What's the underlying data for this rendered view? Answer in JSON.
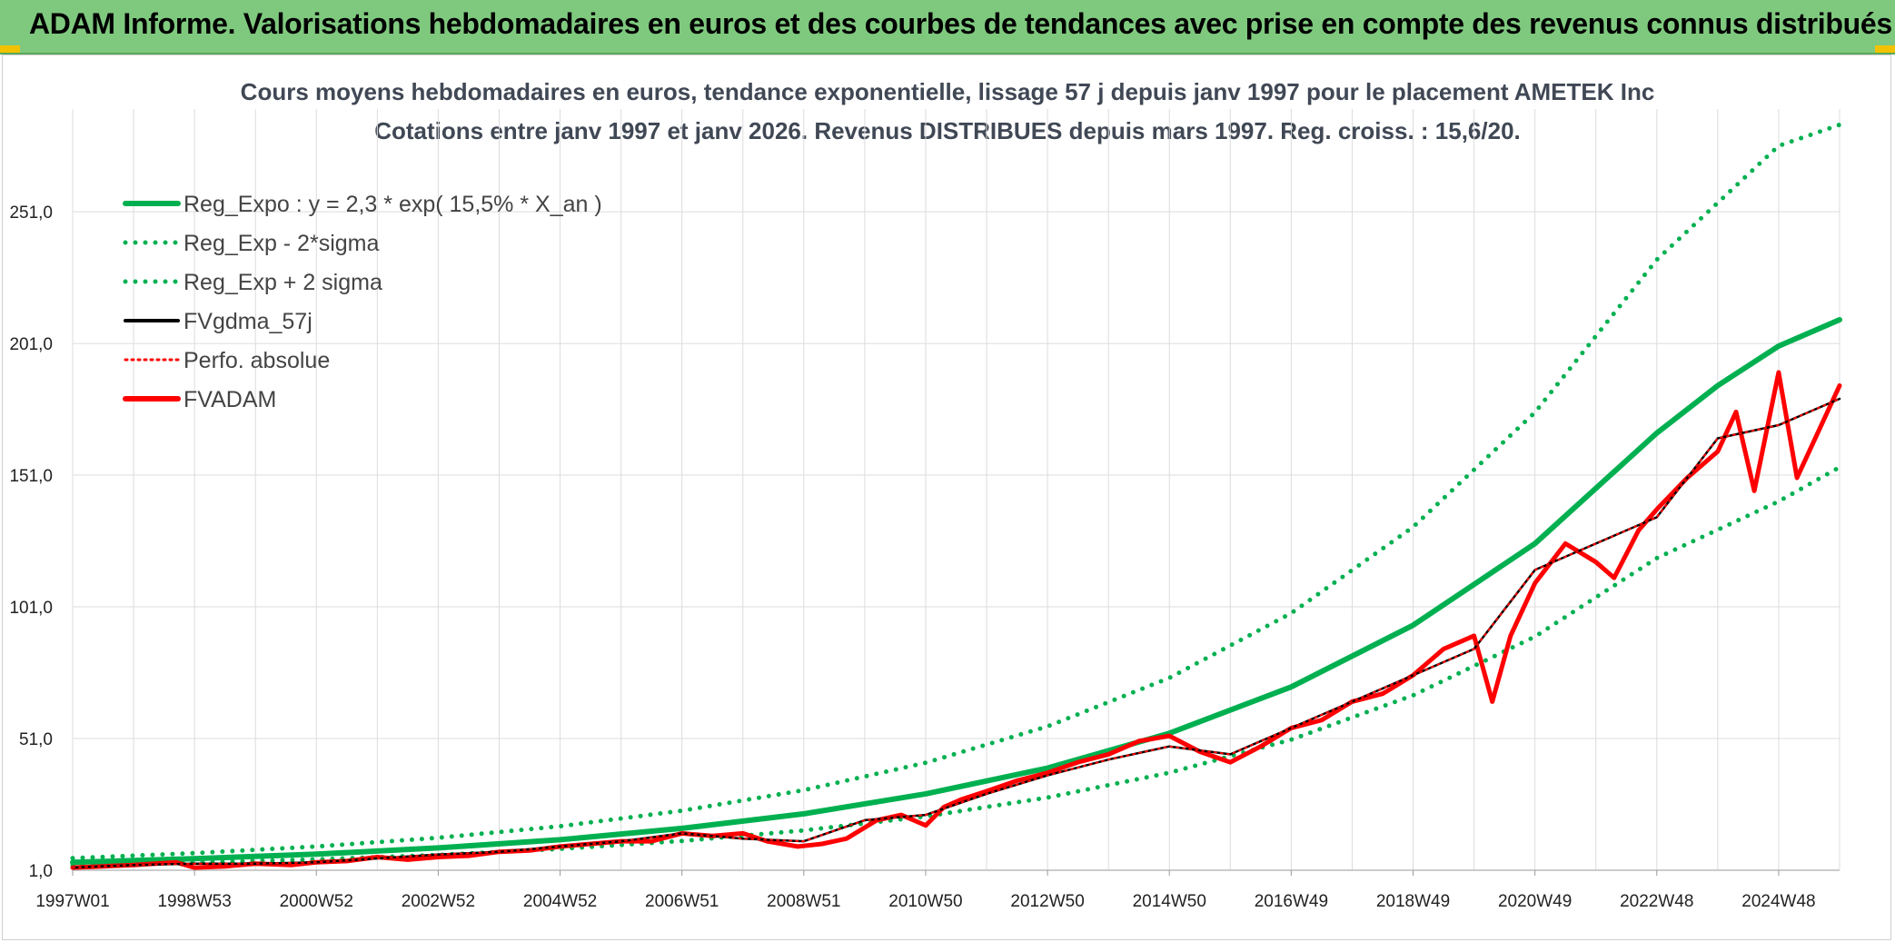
{
  "header": {
    "title": "ADAM Informe. Valorisations hebdomadaires en euros et des courbes de tendances avec prise en compte des revenus connus distribués"
  },
  "chart_data": {
    "type": "line",
    "title": "Cours moyens hebdomadaires en euros, tendance exponentielle, lissage 57 j depuis janv 1997 pour le placement AMETEK Inc",
    "subtitle": "Cotations entre janv 1997 et janv 2026. Revenus DISTRIBUES depuis mars 1997. Reg. croiss. : 15,6/20.",
    "xlabel": "",
    "ylabel": "",
    "x_ticks": [
      "1997W01",
      "1998W53",
      "2000W52",
      "2002W52",
      "2004W52",
      "2006W51",
      "2008W51",
      "2010W50",
      "2012W50",
      "2014W50",
      "2016W49",
      "2018W49",
      "2020W49",
      "2022W48",
      "2024W48"
    ],
    "x_range": [
      1997.0,
      2026.0
    ],
    "y_ticks": [
      "1,0",
      "51,0",
      "101,0",
      "151,0",
      "201,0",
      "251,0"
    ],
    "ylim": [
      1,
      290
    ],
    "grid": true,
    "legend_position": "top-left",
    "colors": {
      "green": "#00b050",
      "red": "#ff0000",
      "black": "#000000"
    },
    "series": [
      {
        "name": "Reg_Expo : y = 2,3 * exp( 15,5% *  X_an )",
        "style": "solid",
        "color": "#00b050",
        "x": [
          1997,
          1999,
          2001,
          2003,
          2005,
          2007,
          2009,
          2011,
          2013,
          2015,
          2017,
          2019,
          2021,
          2023,
          2024,
          2025,
          2026
        ],
        "y": [
          4,
          5.4,
          7.1,
          9.5,
          12.6,
          16.9,
          22.4,
          30,
          39.8,
          53,
          70.6,
          94,
          125,
          167,
          185,
          200,
          210
        ]
      },
      {
        "name": "Reg_Exp - 2*sigma",
        "style": "dotted",
        "color": "#00b050",
        "x": [
          1997,
          1999,
          2001,
          2003,
          2005,
          2007,
          2009,
          2011,
          2013,
          2015,
          2017,
          2019,
          2021,
          2023,
          2025,
          2026
        ],
        "y": [
          2.9,
          3.9,
          5.1,
          6.8,
          9.1,
          12.1,
          16.1,
          21.4,
          28.6,
          38,
          50.6,
          67.4,
          89.7,
          119.5,
          141,
          154
        ]
      },
      {
        "name": "Reg_Exp + 2 sigma",
        "style": "dotted",
        "color": "#00b050",
        "x": [
          1997,
          1999,
          2001,
          2003,
          2005,
          2007,
          2009,
          2011,
          2013,
          2015,
          2017,
          2019,
          2021,
          2023,
          2025,
          2026
        ],
        "y": [
          5.6,
          7.5,
          10,
          13.3,
          17.7,
          23.6,
          31.4,
          41.8,
          55.6,
          74,
          98.6,
          131.3,
          174.8,
          232.8,
          276,
          284
        ]
      },
      {
        "name": "FVgdma_57j",
        "style": "solid",
        "color": "#000000",
        "x": [
          1997,
          1998,
          1999,
          2000,
          2001,
          2002,
          2003,
          2004,
          2005,
          2006,
          2007,
          2008,
          2009,
          2010,
          2011,
          2012,
          2013,
          2014,
          2015,
          2016,
          2017,
          2018,
          2019,
          2020,
          2021,
          2022,
          2023,
          2024,
          2025,
          2026
        ],
        "y": [
          2,
          3,
          3.5,
          3.5,
          4,
          5.5,
          7,
          8,
          10,
          12,
          15,
          13,
          12,
          20,
          22,
          30,
          37,
          43,
          48,
          45,
          55,
          65,
          75,
          85,
          115,
          125,
          135,
          165,
          170,
          180
        ]
      },
      {
        "name": "Perfo. absolue",
        "style": "dotted",
        "color": "#ff0000",
        "x": [
          1997,
          1998,
          1999,
          2000,
          2001,
          2002,
          2003,
          2004,
          2005,
          2006,
          2007,
          2008,
          2009,
          2010,
          2011,
          2012,
          2013,
          2014,
          2015,
          2016,
          2017,
          2018,
          2019,
          2020,
          2021,
          2022,
          2023,
          2024,
          2025,
          2026
        ],
        "y": [
          2,
          3,
          3.5,
          3.5,
          4,
          5.5,
          7,
          8,
          10,
          12,
          15,
          13,
          12,
          20,
          22,
          30,
          37,
          43,
          48,
          45,
          55,
          65,
          75,
          85,
          115,
          125,
          135,
          165,
          170,
          180
        ]
      },
      {
        "name": "FVADAM",
        "style": "solid",
        "color": "#ff0000",
        "x": [
          1997,
          1997.5,
          1998,
          1998.7,
          1999,
          1999.5,
          2000,
          2000.6,
          2001,
          2001.5,
          2002,
          2002.5,
          2003,
          2003.5,
          2004,
          2004.5,
          2005,
          2005.5,
          2006,
          2006.5,
          2007,
          2007.5,
          2008,
          2008.4,
          2008.9,
          2009.3,
          2009.7,
          2010.2,
          2010.6,
          2011,
          2011.3,
          2011.6,
          2012,
          2012.5,
          2013,
          2013.5,
          2014,
          2014.5,
          2015,
          2015.5,
          2016,
          2016.5,
          2017,
          2017.5,
          2018,
          2018.5,
          2019,
          2019.5,
          2020,
          2020.3,
          2020.6,
          2021,
          2021.5,
          2022,
          2022.3,
          2022.7,
          2023,
          2023.5,
          2024,
          2024.3,
          2024.6,
          2025,
          2025.3,
          2025.7,
          2026
        ],
        "y": [
          2,
          2.5,
          3,
          4,
          2,
          2.5,
          3.5,
          3,
          4,
          4.5,
          6,
          5,
          6,
          6.5,
          8,
          8.5,
          10,
          11,
          12,
          12,
          15,
          14,
          15,
          12,
          10,
          11,
          13,
          20,
          22,
          18,
          25,
          28,
          31,
          35,
          38,
          42,
          45,
          50,
          52,
          46,
          42,
          48,
          55,
          58,
          65,
          68,
          75,
          85,
          90,
          65,
          90,
          110,
          125,
          118,
          112,
          130,
          138,
          150,
          160,
          175,
          145,
          190,
          150,
          170,
          185
        ]
      }
    ]
  }
}
